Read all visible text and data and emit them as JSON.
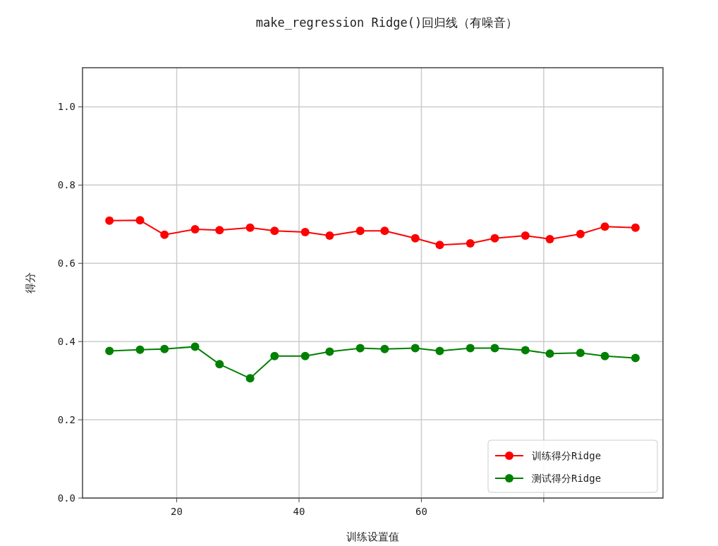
{
  "chart_data": {
    "type": "line",
    "title": "make_regression Ridge()回归线（有噪音）",
    "xlabel": "训练设置值",
    "ylabel": "得分",
    "x": [
      9,
      14,
      18,
      23,
      27,
      32,
      36,
      41,
      45,
      50,
      54,
      59,
      63,
      68,
      72,
      77,
      81,
      86,
      90,
      95
    ],
    "series": [
      {
        "name": "训练得分Ridge",
        "color": "#ff0000",
        "values": [
          0.709,
          0.71,
          0.673,
          0.687,
          0.685,
          0.691,
          0.683,
          0.68,
          0.671,
          0.683,
          0.683,
          0.664,
          0.647,
          0.651,
          0.664,
          0.671,
          0.662,
          0.675,
          0.694,
          0.691
        ]
      },
      {
        "name": "测试得分Ridge",
        "color": "#008000",
        "values": [
          0.376,
          0.379,
          0.381,
          0.387,
          0.342,
          0.306,
          0.363,
          0.363,
          0.374,
          0.383,
          0.381,
          0.383,
          0.376,
          0.383,
          0.383,
          0.378,
          0.369,
          0.371,
          0.363,
          0.358
        ]
      }
    ],
    "xlim": [
      4.6,
      99.5
    ],
    "ylim": [
      0,
      1.1
    ],
    "xticks": [
      20,
      40,
      60,
      {
        "value": 80,
        "label": null
      }
    ],
    "yticks": [
      {
        "value": 0,
        "label": "0.0"
      },
      {
        "value": 0.2,
        "label": "0.2"
      },
      {
        "value": 0.4,
        "label": "0.4"
      },
      {
        "value": 0.6,
        "label": "0.6"
      },
      {
        "value": 0.8,
        "label": "0.8"
      },
      {
        "value": 1,
        "label": "1.0"
      }
    ],
    "grid": true,
    "legend": "bottom right",
    "marker": "circle",
    "line_style": "solid"
  }
}
